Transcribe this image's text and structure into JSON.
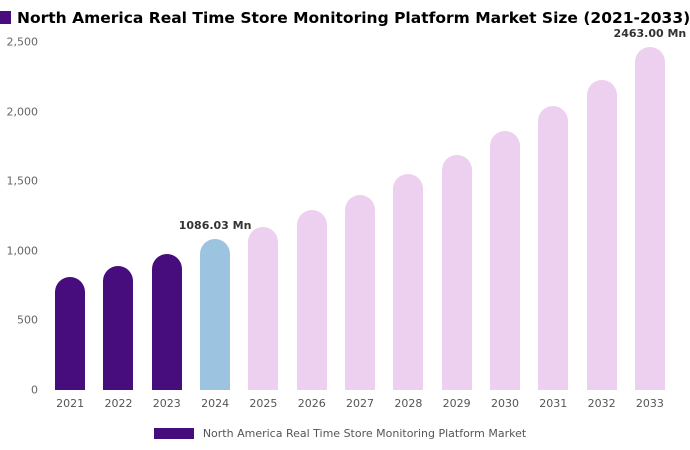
{
  "page": {
    "title": "North America Real Time Store Monitoring Platform Market Size (2021-2033)"
  },
  "accent_color": "#470d7d",
  "chart_data": {
    "type": "bar",
    "title": "North America Real Time Store Monitoring Platform Market Size (2021-2033)",
    "categories": [
      "2021",
      "2022",
      "2023",
      "2024",
      "2025",
      "2026",
      "2027",
      "2028",
      "2029",
      "2030",
      "2031",
      "2032",
      "2033"
    ],
    "values": [
      810,
      890,
      980,
      1086.03,
      1170,
      1290,
      1400,
      1550,
      1690,
      1860,
      2040,
      2230,
      2463
    ],
    "unit": "Mn",
    "xlabel": "",
    "ylabel": "",
    "ylim": [
      0,
      2500
    ],
    "yticks": [
      0,
      500,
      1000,
      1500,
      2000,
      2500
    ],
    "ytick_labels": [
      "0",
      "500",
      "1,000",
      "1,500",
      "2,000",
      "2,500"
    ],
    "grid": false,
    "bar_roles": [
      "historical",
      "historical",
      "historical",
      "current",
      "forecast",
      "forecast",
      "forecast",
      "forecast",
      "forecast",
      "forecast",
      "forecast",
      "forecast",
      "forecast"
    ],
    "palette": {
      "historical": "#470d7d",
      "current": "#9cc3e0",
      "forecast": "#edd0ef"
    },
    "annotations": [
      {
        "category": "2024",
        "text": "1086.03 Mn"
      },
      {
        "category": "2033",
        "text": "2463.00 Mn"
      }
    ],
    "legend_position": "bottom",
    "legend": [
      {
        "label": "North America Real Time Store Monitoring Platform Market",
        "color": "#470d7d"
      }
    ]
  }
}
